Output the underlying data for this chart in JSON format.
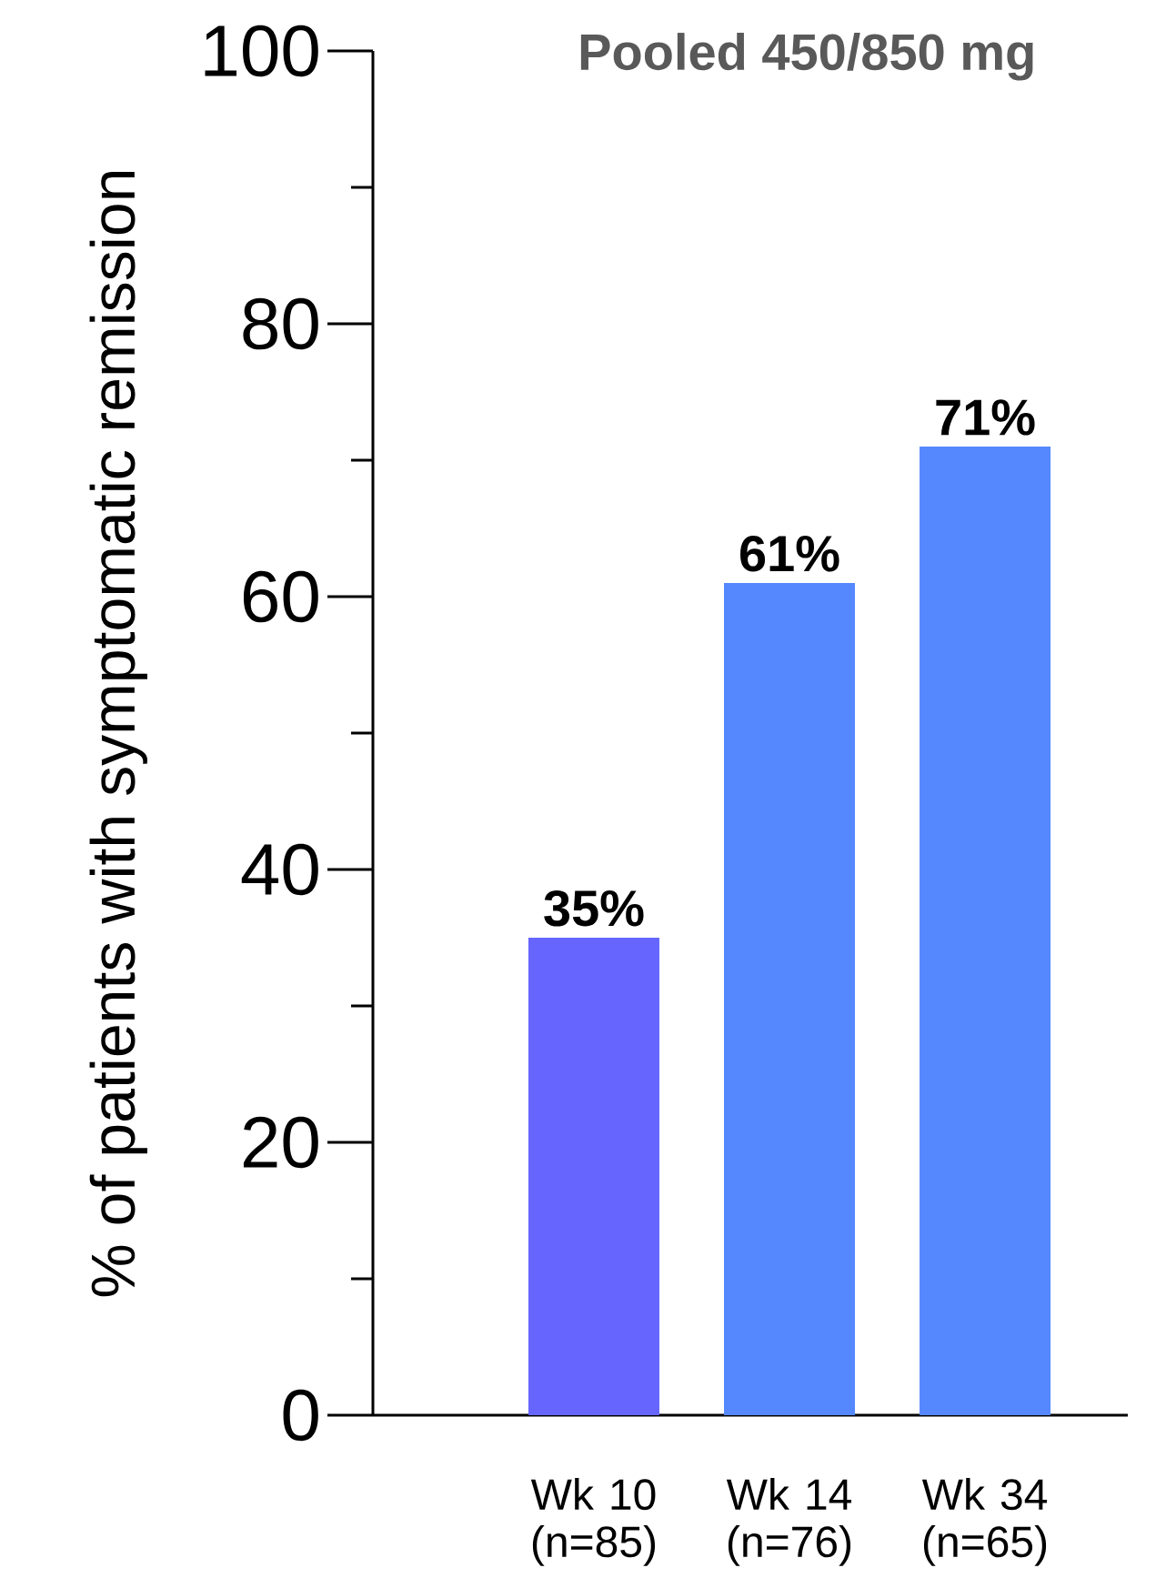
{
  "chart_data": {
    "type": "bar",
    "title": "Pooled 450/850 mg",
    "ylabel": "% of patients with symptomatic remission",
    "categories": [
      "Wk 10 (n=85)",
      "Wk 14 (n=76)",
      "Wk 34 (n=65)"
    ],
    "values": [
      35,
      61,
      71
    ],
    "value_labels": [
      "35%",
      "61%",
      "71%"
    ],
    "colors": [
      "#6666ff",
      "#5588ff",
      "#5588ff"
    ],
    "ylim": [
      0,
      100
    ],
    "yticks": [
      0,
      {
        "value": 10,
        "label": null
      },
      20,
      {
        "value": 30,
        "label": null
      },
      40,
      {
        "value": 50,
        "label": null
      },
      60,
      {
        "value": 70,
        "label": null
      },
      80,
      {
        "value": 90,
        "label": null
      },
      100
    ],
    "grid": false
  }
}
